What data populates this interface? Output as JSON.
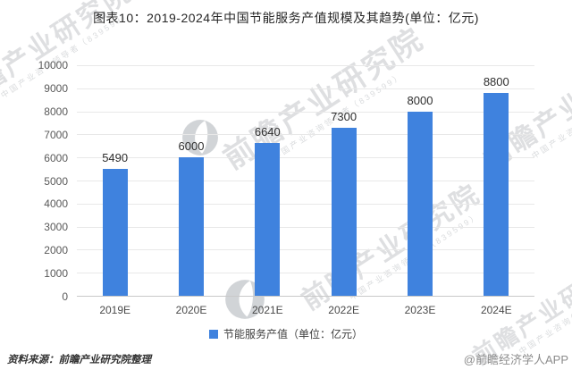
{
  "title": "图表10：2019-2024年中国节能服务产值规模及其趋势(单位：亿元)",
  "chart_data": {
    "type": "bar",
    "title": "2019-2024年中国节能服务产值规模及其趋势",
    "unit": "亿元",
    "categories": [
      "2019E",
      "2020E",
      "2021E",
      "2022E",
      "2023E",
      "2024E"
    ],
    "values": [
      5490,
      6000,
      6640,
      7300,
      8000,
      8800
    ],
    "xlabel": "",
    "ylabel": "",
    "ylim": [
      0,
      10000
    ],
    "ytick_step": 1000,
    "grid": true,
    "legend_position": "bottom",
    "bar_color": "#3f82de"
  },
  "legend": {
    "label": "节能服务产值（单位：亿元）"
  },
  "footer": {
    "source": "资料来源：前瞻产业研究院整理",
    "credit": "@前瞻经济学人APP"
  },
  "watermark": {
    "big": "前瞻产业研究院",
    "small": "中国产业咨询领导者（839599）"
  }
}
